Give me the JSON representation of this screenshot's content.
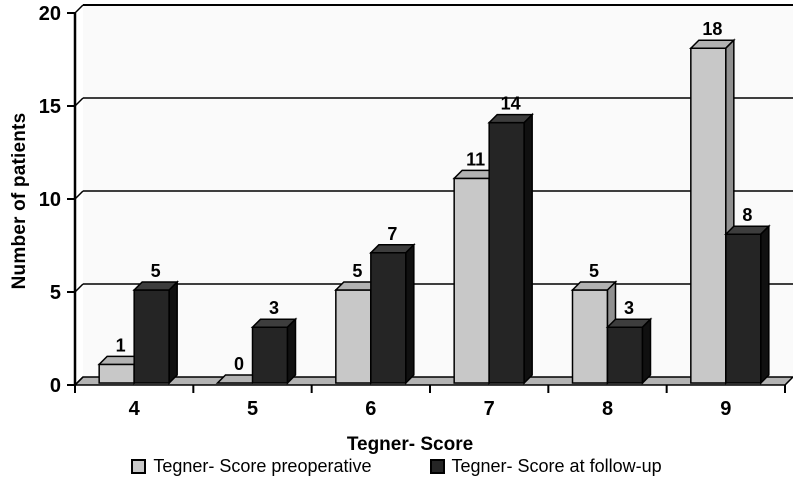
{
  "chart_data": {
    "type": "bar",
    "variant": "3d-clustered-column",
    "title": "",
    "xlabel": "Tegner- Score",
    "ylabel": "Number of patients",
    "categories": [
      "4",
      "5",
      "6",
      "7",
      "8",
      "9"
    ],
    "series": [
      {
        "name": "Tegner- Score preoperative",
        "values": [
          1,
          0,
          5,
          11,
          5,
          18
        ],
        "color_front": "#c8c8c8",
        "color_top": "#b2b2b2",
        "color_side": "#909090"
      },
      {
        "name": "Tegner- Score at follow-up",
        "values": [
          5,
          3,
          7,
          14,
          3,
          8
        ],
        "color_front": "#252525",
        "color_top": "#3d3d3d",
        "color_side": "#101010"
      }
    ],
    "y_ticks": [
      0,
      5,
      10,
      15,
      20
    ],
    "ylim": [
      0,
      20
    ],
    "grid": true,
    "legend_position": "bottom",
    "colors": {
      "wall": "#fafafa",
      "floor": "#b3b3b3",
      "axis": "#000000",
      "text": "#000000"
    }
  }
}
